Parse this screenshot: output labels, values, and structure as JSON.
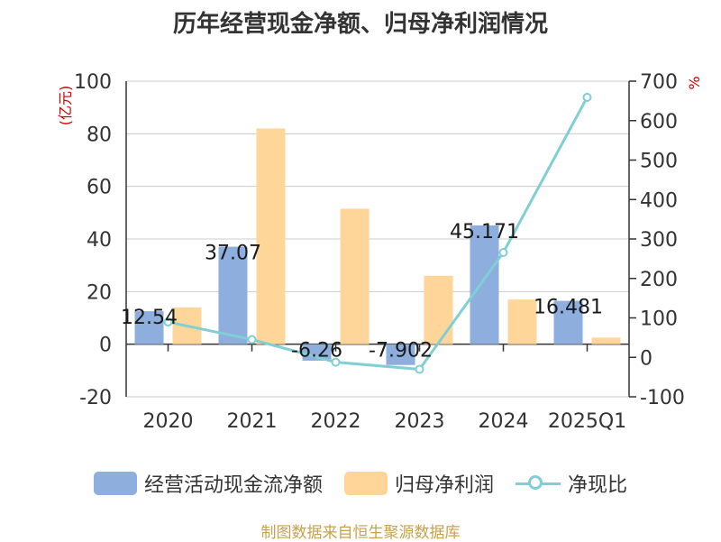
{
  "chart_data": {
    "type": "bar",
    "title": "历年经营现金净额、归母净利润情况",
    "categories": [
      "2020",
      "2021",
      "2022",
      "2023",
      "2024",
      "2025Q1"
    ],
    "series": [
      {
        "name": "经营活动现金流净额",
        "type": "bar",
        "axis": "left",
        "values": [
          12.54,
          37.07,
          -6.26,
          -7.902,
          45.171,
          16.481
        ],
        "labels": [
          "12.54",
          "37.07",
          "-6.26",
          "-7.902",
          "45.171",
          "16.481"
        ]
      },
      {
        "name": "归母净利润",
        "type": "bar",
        "axis": "left",
        "values": [
          14.0,
          82.0,
          51.5,
          26.0,
          17.0,
          2.5
        ]
      },
      {
        "name": "净现比",
        "type": "line",
        "axis": "right",
        "values": [
          89.6,
          45.2,
          -12.2,
          -30.4,
          265.7,
          659.2
        ]
      }
    ],
    "left_axis": {
      "label": "(亿元)",
      "min": -20,
      "max": 100,
      "ticks": [
        -20,
        0,
        20,
        40,
        60,
        80,
        100
      ]
    },
    "right_axis": {
      "label": "%",
      "min": -100,
      "max": 700,
      "ticks": [
        -100,
        0,
        100,
        200,
        300,
        400,
        500,
        600,
        700
      ]
    },
    "grid": true,
    "legend_position": "bottom",
    "colors": {
      "cash": "#8eaede",
      "profit": "#ffd699",
      "ratio": "#80cfd4",
      "axis_label": "#cc0000"
    }
  },
  "footer": "制图数据来自恒生聚源数据库"
}
